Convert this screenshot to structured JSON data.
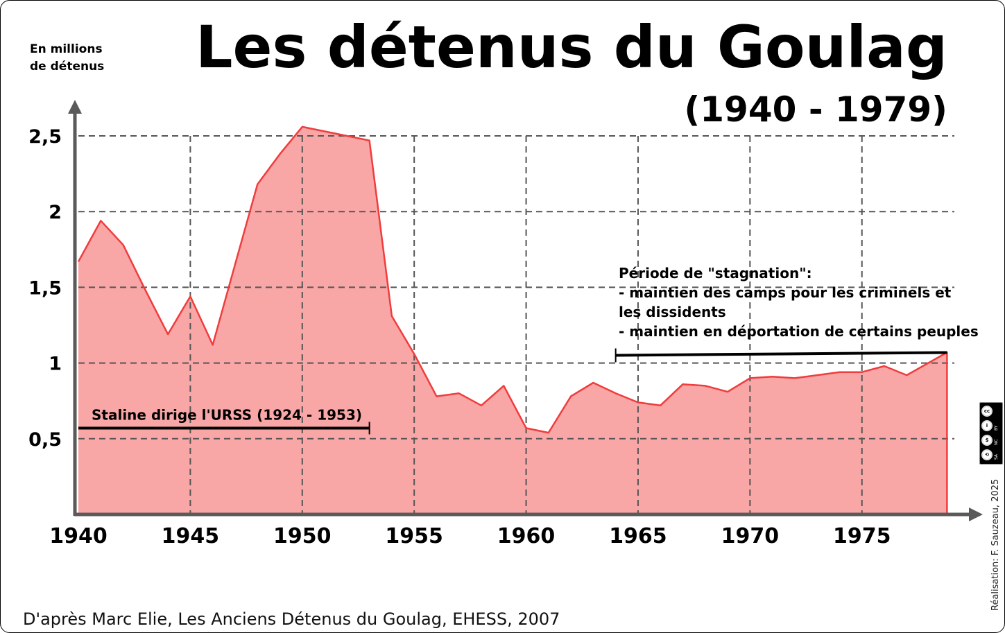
{
  "title": "Les détenus du Goulag",
  "subtitle": "(1940 - 1979)",
  "unit_label": "En millions\nde détenus",
  "source": "D'après Marc Elie, Les Anciens Détenus du Goulag, EHESS, 2007",
  "credit": "Réalisation: F. Sauzeau, 2025",
  "license": {
    "icon": "cc-by-nc-sa-icon",
    "symbols": [
      "cc",
      "i",
      "$",
      "⟲"
    ],
    "tags": [
      "BY",
      "NC",
      "SA"
    ]
  },
  "colors": {
    "line": "#f03c3c",
    "fill": "#f9a6a6",
    "grid": "#555555",
    "axis": "#5a5a5a",
    "annotation_bar": "#000000"
  },
  "chart_data": {
    "type": "area",
    "title": "Les détenus du Goulag",
    "subtitle": "(1940 - 1979)",
    "ylabel": "En millions de détenus",
    "xlabel": "",
    "xlim": [
      1940,
      1980
    ],
    "ylim": [
      0,
      2.75
    ],
    "grid": true,
    "x_ticks": [
      1940,
      1945,
      1950,
      1955,
      1960,
      1965,
      1970,
      1975
    ],
    "x_tick_labels": [
      "1940",
      "1945",
      "1950",
      "1955",
      "1960",
      "1965",
      "1970",
      "1975"
    ],
    "y_ticks": [
      0.5,
      1,
      1.5,
      2,
      2.5
    ],
    "y_tick_labels": [
      "0,5",
      "1",
      "1,5",
      "2",
      "2,5"
    ],
    "series": [
      {
        "x": [
          1940,
          1941,
          1942,
          1943,
          1944,
          1945,
          1946,
          1947,
          1948,
          1949,
          1950,
          1953,
          1954,
          1955,
          1956,
          1957,
          1958,
          1959,
          1960,
          1961,
          1962,
          1963,
          1964,
          1965,
          1966,
          1967,
          1968,
          1969,
          1970,
          1971,
          1972,
          1973,
          1974,
          1975,
          1976,
          1977,
          1978.8
        ],
        "values": [
          1.67,
          1.94,
          1.78,
          1.48,
          1.19,
          1.44,
          1.12,
          1.65,
          2.18,
          2.38,
          2.56,
          2.47,
          1.31,
          1.06,
          0.78,
          0.8,
          0.72,
          0.85,
          0.57,
          0.54,
          0.78,
          0.87,
          0.8,
          0.74,
          0.72,
          0.86,
          0.85,
          0.81,
          0.9,
          0.91,
          0.9,
          0.92,
          0.94,
          0.94,
          0.98,
          0.92,
          1.07
        ]
      }
    ],
    "annotations": [
      {
        "text": "Staline dirige l'URSS (1924 - 1953)",
        "x_end": 1953,
        "y": 0.57
      },
      {
        "lines": [
          "Période de \"stagnation\":",
          "-  maintien des camps pour les criminels et",
          "les dissidents",
          "- maintien en déportation de certains peuples"
        ],
        "x_start": 1964,
        "x_end": 1978.8,
        "y": 1.06
      }
    ]
  }
}
